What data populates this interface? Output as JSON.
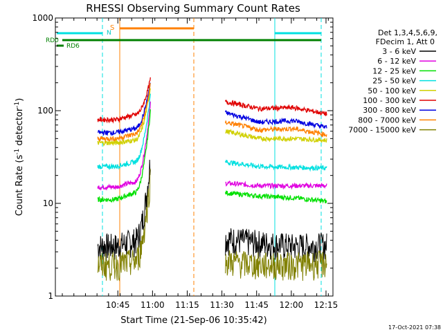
{
  "chart_data": {
    "type": "line",
    "title": "RHESSI Observing Summary Count Rates",
    "xlabel": "Start Time (21-Sep-06 10:35:42)",
    "ylabel_prefix": "Count Rate (s",
    "ylabel_sup1": "-1",
    "ylabel_mid": " detector",
    "ylabel_sup2": "-1",
    "ylabel_suffix": ")",
    "y_scale": "log",
    "ylim": [
      1,
      1000
    ],
    "xlim_minutes": [
      10.3,
      12.3
    ],
    "x_ticks": [
      {
        "label": "10:45",
        "t": 10.75
      },
      {
        "label": "11:00",
        "t": 11.0
      },
      {
        "label": "11:15",
        "t": 11.25
      },
      {
        "label": "11:30",
        "t": 11.5
      },
      {
        "label": "11:45",
        "t": 11.75
      },
      {
        "label": "12:00",
        "t": 12.0
      },
      {
        "label": "12:15",
        "t": 12.25
      }
    ],
    "y_ticks": [
      {
        "label": "1",
        "v": 1
      },
      {
        "label": "10",
        "v": 10
      },
      {
        "label": "100",
        "v": 100
      },
      {
        "label": "1000",
        "v": 1000
      }
    ],
    "legend_placement": "right",
    "legend_header": [
      "Det 1,3,4,5,6,9,",
      "FDecim 1, Att 0"
    ],
    "series": [
      {
        "name": "3 - 6 keV",
        "color": "#000000",
        "before": [
          3.5,
          3.5,
          4.0,
          30
        ],
        "after": [
          4.2,
          3.8,
          3.5,
          3.6
        ]
      },
      {
        "name": "6 - 12 keV",
        "color": "#e000e0",
        "before": [
          15,
          15,
          17,
          120
        ],
        "after": [
          16.5,
          15.5,
          15.5,
          15.5
        ]
      },
      {
        "name": "12 - 25 keV",
        "color": "#00e000",
        "before": [
          11,
          11,
          13,
          100
        ],
        "after": [
          13,
          12,
          11.5,
          10.5
        ]
      },
      {
        "name": "25 - 50 keV",
        "color": "#00e0e0",
        "before": [
          25,
          25,
          28,
          150
        ],
        "after": [
          28,
          25,
          24.5,
          24
        ]
      },
      {
        "name": "50 - 100 keV",
        "color": "#d0d000",
        "before": [
          45,
          45,
          48,
          180
        ],
        "after": [
          60,
          50,
          50,
          48
        ]
      },
      {
        "name": "100 - 300 keV",
        "color": "#e00000",
        "before": [
          80,
          80,
          90,
          220
        ],
        "after": [
          125,
          105,
          108,
          92
        ]
      },
      {
        "name": "300 - 800 keV",
        "color": "#0000e0",
        "before": [
          58,
          58,
          64,
          200
        ],
        "after": [
          95,
          75,
          78,
          66
        ]
      },
      {
        "name": "800 - 7000 keV",
        "color": "#ff8000",
        "before": [
          50,
          50,
          56,
          190
        ],
        "after": [
          75,
          62,
          64,
          55
        ]
      },
      {
        "name": "7000 - 15000 keV",
        "color": "#808000",
        "before": [
          2.2,
          2.2,
          2.4,
          20
        ],
        "after": [
          2.4,
          2.2,
          2.2,
          2.3
        ]
      }
    ],
    "flag_labels": [
      "S",
      "N",
      "RD0",
      "RD6"
    ],
    "timestamp": "17-Oct-2021 07:38"
  }
}
